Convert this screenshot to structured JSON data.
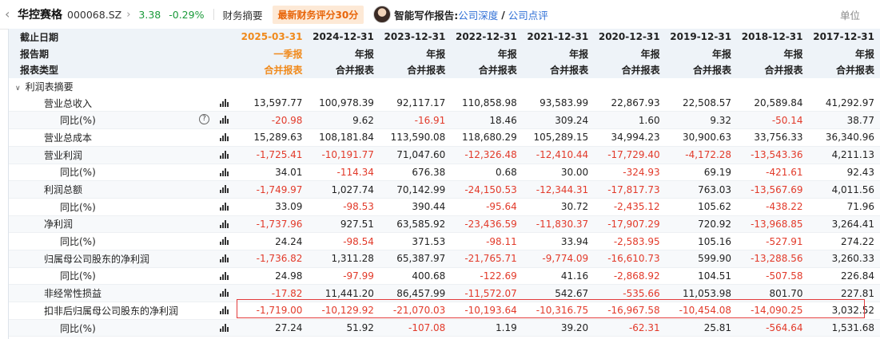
{
  "header": {
    "back_icon": "chevron-left-icon",
    "stock_name": "华控赛格",
    "stock_code": "000068.SZ",
    "chevron": "›",
    "price": "3.38",
    "change_pct": "-0.29%",
    "tab_summary": "财务摘要",
    "score_badge": "最新财务评分30分",
    "ai_label": "智能写作报告:",
    "report_links": [
      "公司深度",
      "公司点评"
    ],
    "slash": "/",
    "unit_label": "单位",
    "colors": {
      "down": "#1a9a3a",
      "link": "#2f6fd6",
      "badge": "#e8650a",
      "highlight": "#f08a1c",
      "negative": "#e23a2a"
    }
  },
  "table": {
    "header_rows": [
      {
        "label": "截止日期",
        "values": [
          "2025-03-31",
          "2024-12-31",
          "2023-12-31",
          "2022-12-31",
          "2021-12-31",
          "2020-12-31",
          "2019-12-31",
          "2018-12-31",
          "2017-12-31"
        ]
      },
      {
        "label": "报告期",
        "values": [
          "一季报",
          "年报",
          "年报",
          "年报",
          "年报",
          "年报",
          "年报",
          "年报",
          "年报"
        ]
      },
      {
        "label": "报表类型",
        "values": [
          "合并报表",
          "合并报表",
          "合并报表",
          "合并报表",
          "合并报表",
          "合并报表",
          "合并报表",
          "合并报表",
          "合并报表"
        ]
      }
    ],
    "section_label": "利润表摘要",
    "rows": [
      {
        "label": "营业总收入",
        "level": 1,
        "help": false,
        "values": [
          "13,597.77",
          "100,978.39",
          "92,117.17",
          "110,858.98",
          "93,583.99",
          "22,867.93",
          "22,508.57",
          "20,589.84",
          "41,292.97"
        ]
      },
      {
        "label": "同比(%)",
        "level": 2,
        "help": true,
        "values": [
          "-20.98",
          "9.62",
          "-16.91",
          "18.46",
          "309.24",
          "1.60",
          "9.32",
          "-50.14",
          "38.77"
        ]
      },
      {
        "label": "营业总成本",
        "level": 1,
        "help": false,
        "values": [
          "15,289.63",
          "108,181.84",
          "113,590.08",
          "118,680.29",
          "105,289.15",
          "34,994.23",
          "30,900.63",
          "33,756.33",
          "36,340.96"
        ]
      },
      {
        "label": "营业利润",
        "level": 1,
        "help": false,
        "values": [
          "-1,725.41",
          "-10,191.77",
          "71,047.60",
          "-12,326.48",
          "-12,410.44",
          "-17,729.40",
          "-4,172.28",
          "-13,543.36",
          "4,211.13"
        ]
      },
      {
        "label": "同比(%)",
        "level": 2,
        "help": false,
        "values": [
          "34.01",
          "-114.34",
          "676.38",
          "0.68",
          "30.00",
          "-324.93",
          "69.19",
          "-421.61",
          "92.43"
        ]
      },
      {
        "label": "利润总额",
        "level": 1,
        "help": false,
        "values": [
          "-1,749.97",
          "1,027.74",
          "70,142.99",
          "-24,150.53",
          "-12,344.31",
          "-17,817.73",
          "763.03",
          "-13,567.69",
          "4,011.56"
        ]
      },
      {
        "label": "同比(%)",
        "level": 2,
        "help": false,
        "values": [
          "33.09",
          "-98.53",
          "390.44",
          "-95.64",
          "30.72",
          "-2,435.12",
          "105.62",
          "-438.22",
          "71.96"
        ]
      },
      {
        "label": "净利润",
        "level": 1,
        "help": false,
        "values": [
          "-1,737.96",
          "927.51",
          "63,585.92",
          "-23,436.59",
          "-11,830.37",
          "-17,907.29",
          "720.92",
          "-13,968.85",
          "3,264.41"
        ]
      },
      {
        "label": "同比(%)",
        "level": 2,
        "help": false,
        "values": [
          "24.24",
          "-98.54",
          "371.53",
          "-98.11",
          "33.94",
          "-2,583.95",
          "105.16",
          "-527.91",
          "274.22"
        ]
      },
      {
        "label": "归属母公司股东的净利润",
        "level": 1,
        "help": false,
        "values": [
          "-1,736.82",
          "1,311.28",
          "65,387.97",
          "-21,765.71",
          "-9,774.09",
          "-16,610.73",
          "599.90",
          "-13,288.56",
          "3,260.33"
        ]
      },
      {
        "label": "同比(%)",
        "level": 2,
        "help": false,
        "values": [
          "24.98",
          "-97.99",
          "400.68",
          "-122.69",
          "41.16",
          "-2,868.92",
          "104.51",
          "-507.58",
          "226.84"
        ]
      },
      {
        "label": "非经常性损益",
        "level": 1,
        "help": false,
        "values": [
          "-17.82",
          "11,441.20",
          "86,457.99",
          "-11,572.07",
          "542.67",
          "-535.66",
          "11,053.98",
          "801.70",
          "227.81"
        ]
      },
      {
        "label": "扣非后归属母公司股东的净利润",
        "level": 1,
        "help": false,
        "values": [
          "-1,719.00",
          "-10,129.92",
          "-21,070.03",
          "-10,193.64",
          "-10,316.75",
          "-16,967.58",
          "-10,454.08",
          "-14,090.25",
          "3,032.52"
        ]
      },
      {
        "label": "同比(%)",
        "level": 2,
        "help": false,
        "values": [
          "27.24",
          "51.92",
          "-107.08",
          "1.19",
          "39.20",
          "-62.31",
          "25.81",
          "-564.64",
          "1,531.68"
        ]
      }
    ]
  }
}
